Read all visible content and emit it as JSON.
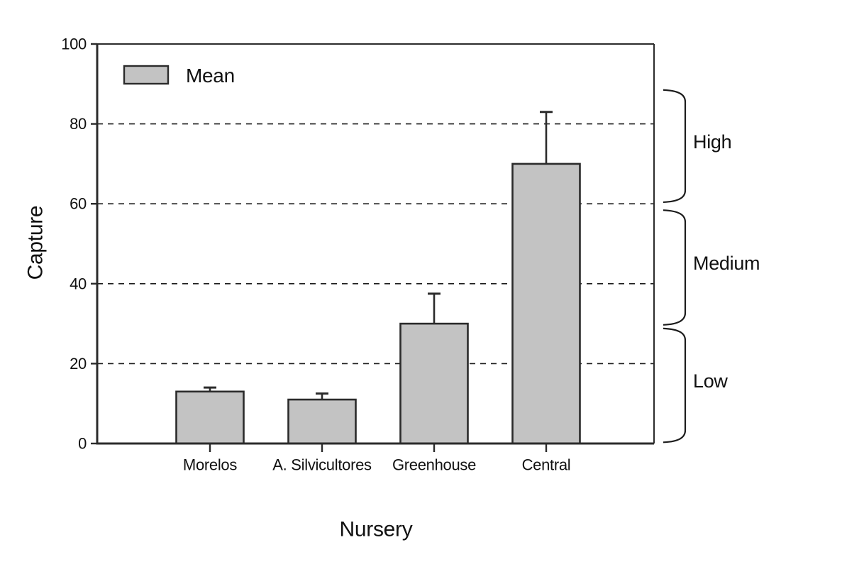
{
  "chart_data": {
    "type": "bar",
    "title": "",
    "xlabel": "Nursery",
    "ylabel": "Capture",
    "categories": [
      "Morelos",
      "A. Silvicultores",
      "Greenhouse",
      "Central"
    ],
    "values": [
      13,
      11,
      30,
      70
    ],
    "error_upper": [
      14,
      12.5,
      37.5,
      83
    ],
    "ylim": [
      0,
      100
    ],
    "yticks": [
      0,
      20,
      40,
      60,
      80,
      100
    ],
    "gridlines_at": [
      20,
      40,
      60,
      80
    ],
    "grid_style": "dashed",
    "legend": [
      {
        "label": "Mean",
        "color": "#c3c3c3"
      }
    ],
    "legend_position": "top-left-inside",
    "bar_color": "#c3c3c3",
    "bar_border_color": "#2b2b2b",
    "axis_color": "#2b2b2b",
    "grid_color": "#1c1c1c",
    "annotations": [
      {
        "label": "High",
        "from": 60.4,
        "to": 88.5
      },
      {
        "label": "Medium",
        "from": 29.7,
        "to": 58.4
      },
      {
        "label": "Low",
        "from": 0.3,
        "to": 28.8
      }
    ]
  }
}
